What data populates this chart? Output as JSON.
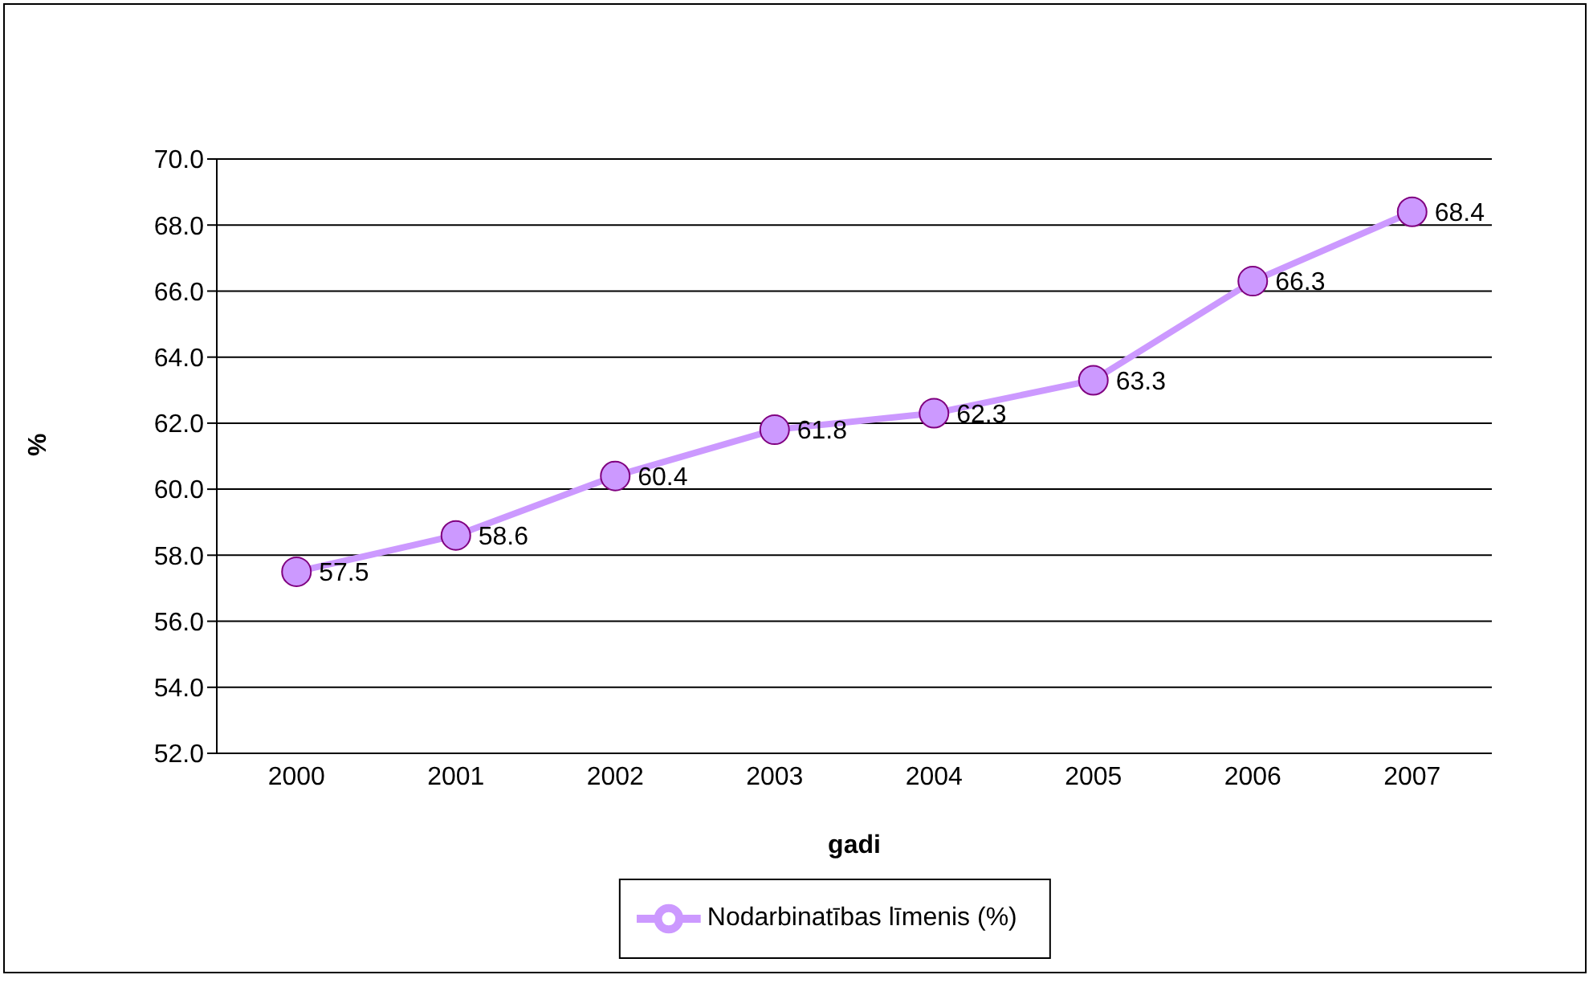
{
  "chart_data": {
    "type": "line",
    "xlabel": "gadi",
    "ylabel": "%",
    "categories": [
      "2000",
      "2001",
      "2002",
      "2003",
      "2004",
      "2005",
      "2006",
      "2007"
    ],
    "series": [
      {
        "name": "Nodarbinatības līmenis (%)",
        "color": "#cc99ff",
        "values": [
          57.5,
          58.6,
          60.4,
          61.8,
          62.3,
          63.3,
          66.3,
          68.4
        ]
      }
    ],
    "ylim": [
      52,
      70
    ],
    "yticks": [
      {
        "value": 52,
        "label": "52.0"
      },
      {
        "value": 54,
        "label": "54.0"
      },
      {
        "value": 56,
        "label": "56.0"
      },
      {
        "value": 58,
        "label": "58.0"
      },
      {
        "value": 60,
        "label": "60.0"
      },
      {
        "value": 62,
        "label": "62.0"
      },
      {
        "value": 64,
        "label": "64.0"
      },
      {
        "value": 66,
        "label": "66.0"
      },
      {
        "value": 68,
        "label": "68.0"
      },
      {
        "value": 70,
        "label": "70.0"
      }
    ],
    "grid": "y",
    "legend": "bottom",
    "marker": "circle",
    "line_style": "solid",
    "data_labels": true
  }
}
